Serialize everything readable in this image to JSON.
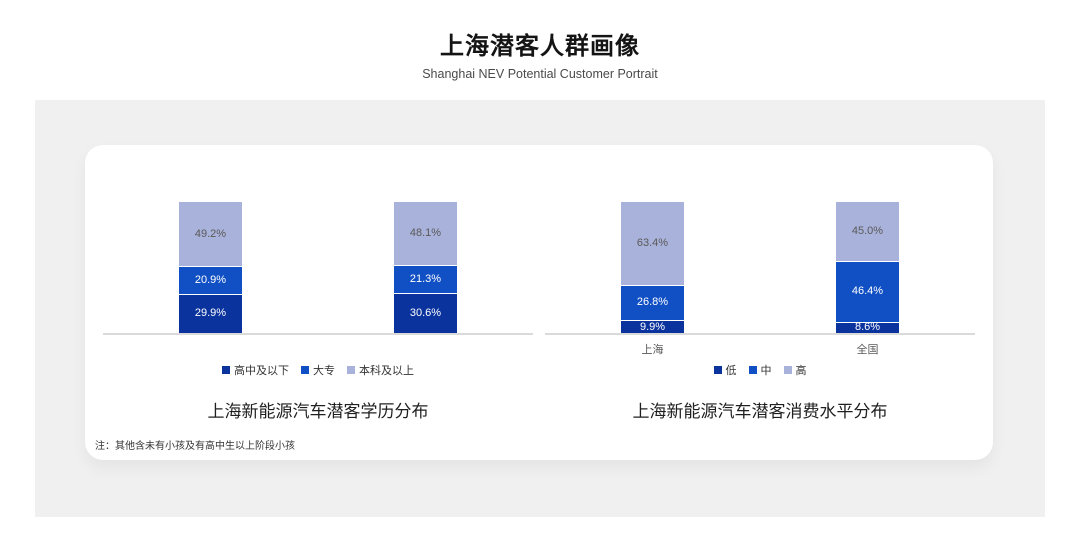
{
  "page": {
    "title": "上海潜客人群画像",
    "subtitle": "Shanghai NEV Potential Customer Portrait",
    "footnote": "注：其他含未有小孩及有高中生以上阶段小孩"
  },
  "colors": {
    "panel_bg": "#f0f0f0",
    "card_bg": "#ffffff",
    "axis_line": "#dadada",
    "dark_blue": "#0b339e",
    "mid_blue": "#1150c4",
    "light_blue": "#a9b2da",
    "label_on_light": "#595959",
    "label_on_blue": "#ffffff"
  },
  "chart_data": [
    {
      "type": "bar",
      "stacked": true,
      "title": "上海新能源汽车潜客学历分布",
      "categories": [
        "",
        ""
      ],
      "series": [
        {
          "name": "高中及以下",
          "values": [
            29.9,
            30.6
          ],
          "color": "#0b339e",
          "label_color": "#ffffff"
        },
        {
          "name": "大专",
          "values": [
            20.9,
            21.3
          ],
          "color": "#1150c4",
          "label_color": "#ffffff"
        },
        {
          "name": "本科及以上",
          "values": [
            49.2,
            48.1
          ],
          "color": "#a9b2da",
          "label_color": "#595959"
        }
      ],
      "value_suffix": "%",
      "ylim": [
        0,
        100
      ],
      "grid": false,
      "legend_position": "bottom",
      "axis_labels_visible": false
    },
    {
      "type": "bar",
      "stacked": true,
      "title": "上海新能源汽车潜客消费水平分布",
      "categories": [
        "上海",
        "全国"
      ],
      "series": [
        {
          "name": "低",
          "values": [
            9.9,
            8.6
          ],
          "color": "#0b339e",
          "label_color": "#ffffff"
        },
        {
          "name": "中",
          "values": [
            26.8,
            46.4
          ],
          "color": "#1150c4",
          "label_color": "#ffffff"
        },
        {
          "name": "高",
          "values": [
            63.4,
            45.0
          ],
          "color": "#a9b2da",
          "label_color": "#595959"
        }
      ],
      "value_suffix": "%",
      "ylim": [
        0,
        100
      ],
      "grid": false,
      "legend_position": "bottom",
      "axis_labels_visible": true
    }
  ]
}
